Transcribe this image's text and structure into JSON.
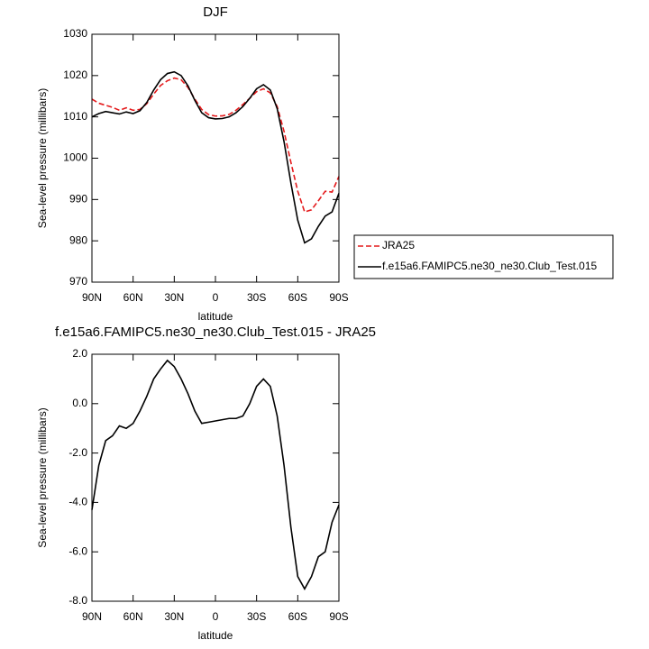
{
  "chart_data": [
    {
      "type": "line",
      "title": "DJF",
      "x_label": "latitude",
      "y_label": "Sea-level pressure (millibars)",
      "x": [
        90,
        85,
        80,
        75,
        70,
        65,
        60,
        55,
        50,
        45,
        40,
        35,
        30,
        25,
        20,
        15,
        10,
        5,
        0,
        -5,
        -10,
        -15,
        -20,
        -25,
        -30,
        -35,
        -40,
        -45,
        -50,
        -55,
        -60,
        -65,
        -70,
        -75,
        -80,
        -85,
        -90
      ],
      "xlim": [
        90,
        -90
      ],
      "xticks": [
        {
          "value": 90,
          "label": "90N"
        },
        {
          "value": 60,
          "label": "60N"
        },
        {
          "value": 30,
          "label": "30N"
        },
        0,
        {
          "value": -30,
          "label": "30S"
        },
        {
          "value": -60,
          "label": "60S"
        },
        {
          "value": -90,
          "label": "90S"
        }
      ],
      "ylim": [
        970,
        1030
      ],
      "yticks": [
        970,
        980,
        990,
        1000,
        1010,
        1020,
        1030
      ],
      "legend": "right",
      "series": [
        {
          "name": "JRA25",
          "color": "#e41a1c",
          "dashed": true,
          "values": [
            1014.3,
            1013.3,
            1012.8,
            1012.3,
            1011.6,
            1012.2,
            1011.6,
            1011.8,
            1013.2,
            1015.5,
            1017.6,
            1018.75,
            1019.4,
            1019,
            1017.1,
            1014.3,
            1011.8,
            1010.55,
            1010.2,
            1010.25,
            1010.6,
            1011.6,
            1013,
            1014.5,
            1016.1,
            1016.8,
            1015.8,
            1012.5,
            1006.5,
            999,
            992,
            987,
            987.5,
            989.7,
            992,
            991.8,
            995.6
          ]
        },
        {
          "name": "f.e15a6.FAMIPC5.ne30_ne30.Club_Test.015",
          "color": "#000000",
          "dashed": false,
          "values": [
            1010,
            1010.8,
            1011.3,
            1011,
            1010.7,
            1011.2,
            1010.8,
            1011.5,
            1013.5,
            1016.5,
            1019,
            1020.5,
            1020.9,
            1020,
            1017.5,
            1014,
            1011,
            1009.8,
            1009.5,
            1009.6,
            1010,
            1011,
            1012.5,
            1014.5,
            1016.8,
            1017.8,
            1016.5,
            1012,
            1004,
            994,
            985,
            979.5,
            980.5,
            983.5,
            986,
            987,
            991.5
          ]
        }
      ]
    },
    {
      "type": "line",
      "title": "f.e15a6.FAMIPC5.ne30_ne30.Club_Test.015 - JRA25",
      "x_label": "latitude",
      "y_label": "Sea-level pressure (millibars)",
      "x": [
        90,
        85,
        80,
        75,
        70,
        65,
        60,
        55,
        50,
        45,
        40,
        35,
        30,
        25,
        20,
        15,
        10,
        5,
        0,
        -5,
        -10,
        -15,
        -20,
        -25,
        -30,
        -35,
        -40,
        -45,
        -50,
        -55,
        -60,
        -65,
        -70,
        -75,
        -80,
        -85,
        -90
      ],
      "xlim": [
        90,
        -90
      ],
      "xticks": [
        {
          "value": 90,
          "label": "90N"
        },
        {
          "value": 60,
          "label": "60N"
        },
        {
          "value": 30,
          "label": "30N"
        },
        0,
        {
          "value": -30,
          "label": "30S"
        },
        {
          "value": -60,
          "label": "60S"
        },
        {
          "value": -90,
          "label": "90S"
        }
      ],
      "ylim": [
        -8,
        2
      ],
      "yticks": [
        {
          "value": -8,
          "label": "-8.0"
        },
        {
          "value": -6,
          "label": "-6.0"
        },
        {
          "value": -4,
          "label": "-4.0"
        },
        {
          "value": -2,
          "label": "-2.0"
        },
        {
          "value": 0,
          "label": "0.0"
        },
        {
          "value": 2,
          "label": "2.0"
        }
      ],
      "series": [
        {
          "color": "#000000",
          "dashed": false,
          "values": [
            -4.3,
            -2.5,
            -1.5,
            -1.3,
            -0.9,
            -1.0,
            -0.8,
            -0.3,
            0.3,
            1.0,
            1.4,
            1.75,
            1.5,
            1.0,
            0.4,
            -0.3,
            -0.8,
            -0.75,
            -0.7,
            -0.65,
            -0.6,
            -0.6,
            -0.5,
            0.0,
            0.7,
            1.0,
            0.7,
            -0.5,
            -2.5,
            -5.0,
            -7.0,
            -7.5,
            -7.0,
            -6.2,
            -6.0,
            -4.8,
            -4.1
          ]
        }
      ]
    }
  ]
}
